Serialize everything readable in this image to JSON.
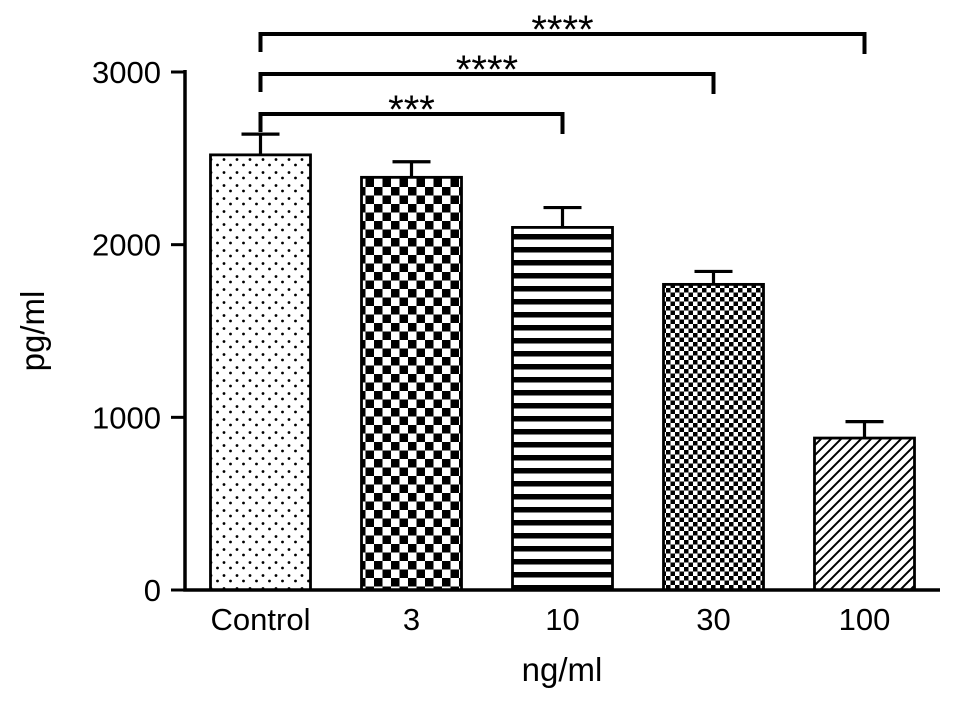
{
  "figure": {
    "background": "#ffffff",
    "ink_color": "#000000"
  },
  "chart_data": {
    "type": "bar",
    "title": "",
    "xlabel": "ng/ml",
    "ylabel": "pg/ml",
    "categories": [
      "Control",
      "3",
      "10",
      "30",
      "100"
    ],
    "values": [
      2520,
      2390,
      2100,
      1770,
      880
    ],
    "error_bars": [
      120,
      90,
      115,
      75,
      95
    ],
    "bar_patterns": [
      "dots",
      "checker",
      "hlines",
      "fine-checker",
      "diagonal"
    ],
    "bar_fill": "#ffffff",
    "ylim": [
      0,
      3000
    ],
    "yticks": [
      0,
      1000,
      2000,
      3000
    ],
    "grid": false,
    "legend": "none",
    "significance_brackets": [
      {
        "from": "Control",
        "to": "10",
        "label": "***"
      },
      {
        "from": "Control",
        "to": "30",
        "label": "****"
      },
      {
        "from": "Control",
        "to": "100",
        "label": "****"
      }
    ]
  }
}
